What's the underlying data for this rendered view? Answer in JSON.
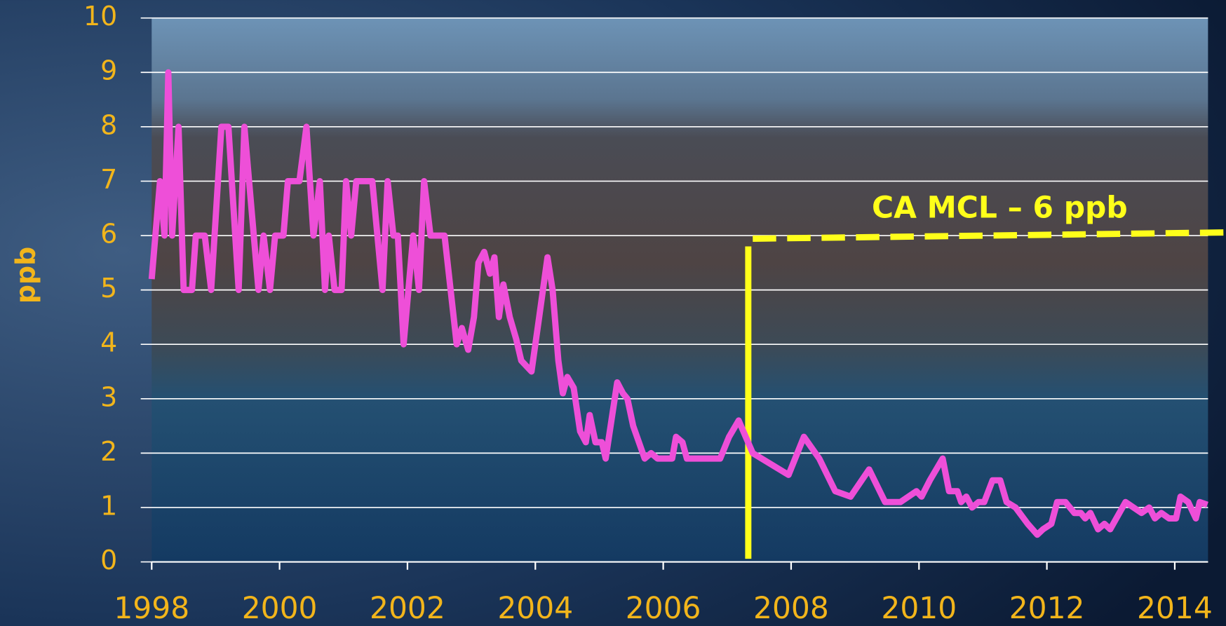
{
  "chart_data": {
    "type": "line",
    "y_label": "ppb",
    "x": [
      1998.0,
      1998.13,
      1998.2,
      1998.26,
      1998.32,
      1998.42,
      1998.5,
      1998.63,
      1998.69,
      1998.83,
      1998.93,
      1999.09,
      1999.2,
      1999.36,
      1999.45,
      1999.67,
      1999.75,
      1999.85,
      1999.93,
      2000.06,
      2000.13,
      2000.31,
      2000.42,
      2000.53,
      2000.63,
      2000.71,
      2000.77,
      2000.86,
      2000.97,
      2001.04,
      2001.12,
      2001.2,
      2001.45,
      2001.61,
      2001.69,
      2001.78,
      2001.85,
      2001.94,
      2002.09,
      2002.18,
      2002.26,
      2002.36,
      2002.58,
      2002.77,
      2002.85,
      2002.95,
      2003.04,
      2003.11,
      2003.2,
      2003.29,
      2003.36,
      2003.43,
      2003.5,
      2003.6,
      2003.7,
      2003.78,
      2003.94,
      2004.06,
      2004.19,
      2004.27,
      2004.36,
      2004.43,
      2004.5,
      2004.6,
      2004.7,
      2004.79,
      2004.85,
      2004.94,
      2005.04,
      2005.1,
      2005.19,
      2005.28,
      2005.37,
      2005.44,
      2005.53,
      2005.62,
      2005.71,
      2005.81,
      2005.91,
      2006.14,
      2006.2,
      2006.3,
      2006.37,
      2006.89,
      2007.03,
      2007.18,
      2007.4,
      2007.96,
      2008.2,
      2008.44,
      2008.69,
      2008.93,
      2009.22,
      2009.47,
      2009.71,
      2009.96,
      2010.04,
      2010.17,
      2010.37,
      2010.47,
      2010.6,
      2010.66,
      2010.74,
      2010.83,
      2010.93,
      2011.02,
      2011.15,
      2011.27,
      2011.37,
      2011.51,
      2011.7,
      2011.85,
      2011.94,
      2012.07,
      2012.16,
      2012.29,
      2012.43,
      2012.53,
      2012.6,
      2012.68,
      2012.8,
      2012.9,
      2012.99,
      2013.23,
      2013.48,
      2013.6,
      2013.69,
      2013.79,
      2013.91,
      2014.02,
      2014.09,
      2014.21,
      2014.33,
      2014.39,
      2014.51
    ],
    "series": [
      {
        "color": "#ee4fd8",
        "values": [
          5.2,
          7,
          6,
          9,
          6,
          8,
          5,
          5,
          6,
          6,
          5,
          8,
          8,
          5,
          8,
          5,
          6,
          5,
          6,
          6,
          7,
          7,
          8,
          6,
          7,
          5,
          6,
          5,
          5,
          7,
          6,
          7,
          7,
          5,
          7,
          6,
          6,
          4,
          6,
          5,
          7,
          6,
          6,
          4,
          4.3,
          3.9,
          4.5,
          5.5,
          5.7,
          5.3,
          5.6,
          4.5,
          5.1,
          4.5,
          4.1,
          3.7,
          3.5,
          4.5,
          5.6,
          5,
          3.7,
          3.1,
          3.4,
          3.2,
          2.4,
          2.2,
          2.7,
          2.2,
          2.2,
          1.9,
          2.6,
          3.3,
          3.1,
          3,
          2.5,
          2.2,
          1.9,
          2,
          1.9,
          1.9,
          2.3,
          2.2,
          1.9,
          1.9,
          2.3,
          2.6,
          2,
          1.6,
          2.3,
          1.9,
          1.3,
          1.2,
          1.7,
          1.1,
          1.1,
          1.3,
          1.2,
          1.5,
          1.9,
          1.3,
          1.3,
          1.1,
          1.2,
          1,
          1.1,
          1.1,
          1.5,
          1.5,
          1.1,
          1,
          0.7,
          0.5,
          0.6,
          0.7,
          1.1,
          1.1,
          0.9,
          0.9,
          0.8,
          0.9,
          0.6,
          0.7,
          0.6,
          1.1,
          0.9,
          1,
          0.8,
          0.9,
          0.8,
          0.8,
          1.2,
          1.1,
          0.8,
          1.1,
          1.05
        ]
      }
    ],
    "xlim": [
      1998,
      2014.52
    ],
    "xticks": [
      1998,
      2000,
      2002,
      2004,
      2006,
      2008,
      2010,
      2012,
      2014
    ],
    "ylim": [
      0,
      10
    ],
    "yticks": [
      0,
      1,
      2,
      3,
      4,
      5,
      6,
      7,
      8,
      9,
      10
    ],
    "grid": true,
    "threshold": {
      "value": 6,
      "label": "CA MCL – 6 ppb",
      "color": "#ffff1a",
      "start_x": 2007.4
    },
    "marker": {
      "x": 2007.33,
      "y_top": 5.8,
      "color": "#ffff1a"
    }
  }
}
